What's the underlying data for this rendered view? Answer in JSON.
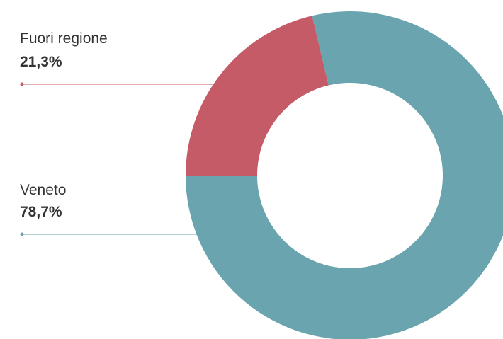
{
  "chart_data": {
    "type": "pie",
    "donut": true,
    "slices": [
      {
        "label": "Fuori regione",
        "value_text": "21,3%",
        "value": 21.3,
        "color": "#c45b67"
      },
      {
        "label": "Veneto",
        "value_text": "78,7%",
        "value": 78.7,
        "color": "#6aa4af"
      }
    ]
  }
}
